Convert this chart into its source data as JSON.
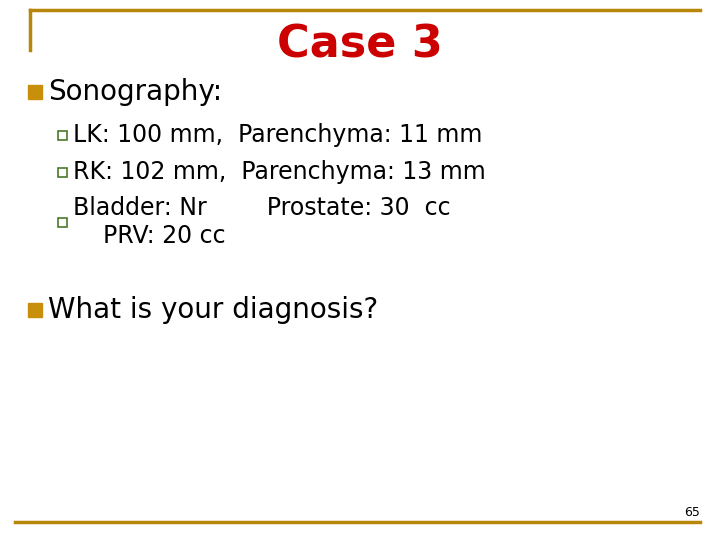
{
  "title": "Case 3",
  "title_color": "#CC0000",
  "title_fontsize": 32,
  "bg_color": "#FFFFFF",
  "border_color": "#B8860B",
  "bullet1_text": "Sonography:",
  "bullet1_fontsize": 20,
  "bullet1_marker_color": "#C8900A",
  "sub_bullets": [
    "LK: 100 mm,  Parenchyma: 11 mm",
    "RK: 102 mm,  Parenchyma: 13 mm",
    "Bladder: Nr        Prostate: 30  cc\n    PRV: 20 cc"
  ],
  "sub_bullet_fontsize": 17,
  "sub_bullet_color": "#000000",
  "sub_marker_facecolor": "#FFFFFF",
  "sub_marker_edgecolor": "#4A7A2A",
  "bullet2_text": "What is your diagnosis?",
  "bullet2_fontsize": 20,
  "bullet2_marker_color": "#C8900A",
  "page_number": "65",
  "page_number_fontsize": 9
}
